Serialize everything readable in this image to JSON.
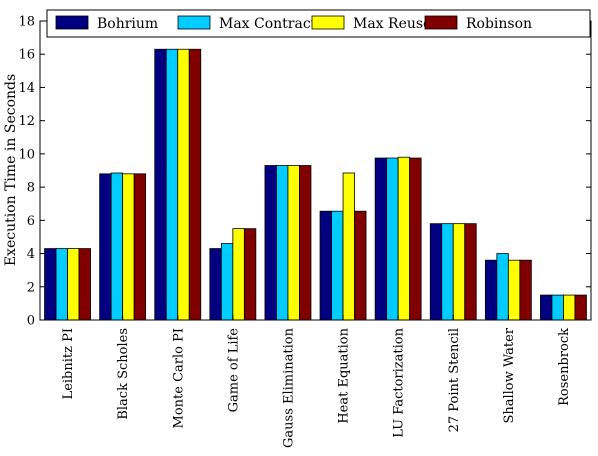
{
  "chart_data": {
    "type": "bar",
    "title": "",
    "xlabel": "",
    "ylabel": "Execution Time in Seconds",
    "ylim": [
      0,
      18
    ],
    "yticks": [
      0,
      2,
      4,
      6,
      8,
      10,
      12,
      14,
      16,
      18
    ],
    "grid": false,
    "legend_position": "top",
    "categories": [
      "Leibnitz PI",
      "Black Scholes",
      "Monte Carlo PI",
      "Game of Life",
      "Gauss Elimination",
      "Heat Equation",
      "LU Factorization",
      "27 Point Stencil",
      "Shallow Water",
      "Rosenbrock"
    ],
    "series": [
      {
        "name": "Bohrium",
        "color": "#000080",
        "values": [
          4.3,
          8.8,
          16.3,
          4.3,
          9.3,
          6.55,
          9.75,
          5.8,
          3.6,
          1.5
        ]
      },
      {
        "name": "Max Contract",
        "color": "#00ccff",
        "values": [
          4.3,
          8.85,
          16.3,
          4.6,
          9.3,
          6.55,
          9.75,
          5.8,
          4.0,
          1.5
        ]
      },
      {
        "name": "Max Reuse",
        "color": "#ffff00",
        "values": [
          4.3,
          8.8,
          16.3,
          5.5,
          9.3,
          8.85,
          9.8,
          5.8,
          3.6,
          1.5
        ]
      },
      {
        "name": "Robinson",
        "color": "#800000",
        "values": [
          4.3,
          8.8,
          16.3,
          5.5,
          9.3,
          6.55,
          9.75,
          5.8,
          3.6,
          1.5
        ]
      }
    ]
  }
}
